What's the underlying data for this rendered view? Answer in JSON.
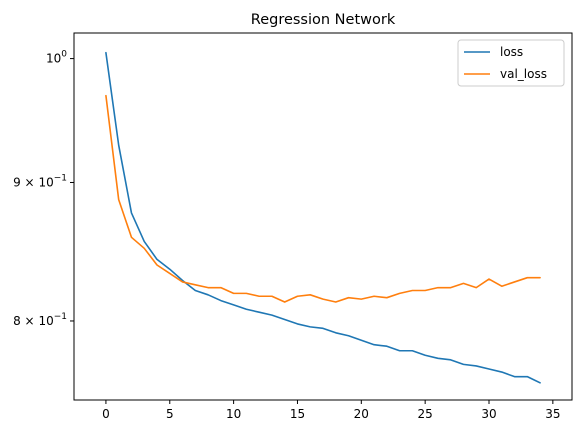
{
  "chart_data": {
    "type": "line",
    "title": "Regression Network",
    "xlabel": "",
    "ylabel": "",
    "xlim": [
      -2.5,
      36.5
    ],
    "ylim": [
      0.748,
      1.022
    ],
    "yscale": "log",
    "grid": false,
    "legend_position": "top-right",
    "x_ticks": [
      0,
      5,
      10,
      15,
      20,
      25,
      30,
      35
    ],
    "y_ticks": [
      {
        "value": 1.0,
        "base": "10",
        "exponent": "0",
        "coef": ""
      },
      {
        "value": 0.9,
        "base": "10",
        "exponent": "−1",
        "coef": "9 × "
      },
      {
        "value": 0.8,
        "base": "10",
        "exponent": "−1",
        "coef": "8 × "
      }
    ],
    "x": [
      0,
      1,
      2,
      3,
      4,
      5,
      6,
      7,
      8,
      9,
      10,
      11,
      12,
      13,
      14,
      15,
      16,
      17,
      18,
      19,
      20,
      21,
      22,
      23,
      24,
      25,
      26,
      27,
      28,
      29,
      30,
      31,
      32,
      33,
      34
    ],
    "series": [
      {
        "name": "loss",
        "color": "#1f77b4",
        "values": [
          1.005,
          0.929,
          0.877,
          0.856,
          0.843,
          0.836,
          0.828,
          0.821,
          0.818,
          0.814,
          0.811,
          0.808,
          0.806,
          0.804,
          0.801,
          0.798,
          0.796,
          0.795,
          0.792,
          0.79,
          0.787,
          0.784,
          0.783,
          0.78,
          0.78,
          0.777,
          0.775,
          0.774,
          0.771,
          0.77,
          0.768,
          0.766,
          0.763,
          0.763,
          0.759
        ]
      },
      {
        "name": "val_loss",
        "color": "#ff7f0e",
        "values": [
          0.969,
          0.887,
          0.859,
          0.851,
          0.839,
          0.833,
          0.827,
          0.825,
          0.823,
          0.823,
          0.819,
          0.819,
          0.817,
          0.817,
          0.813,
          0.817,
          0.818,
          0.815,
          0.813,
          0.816,
          0.815,
          0.817,
          0.816,
          0.819,
          0.821,
          0.821,
          0.823,
          0.823,
          0.826,
          0.823,
          0.829,
          0.824,
          0.827,
          0.83,
          0.83
        ]
      }
    ]
  }
}
